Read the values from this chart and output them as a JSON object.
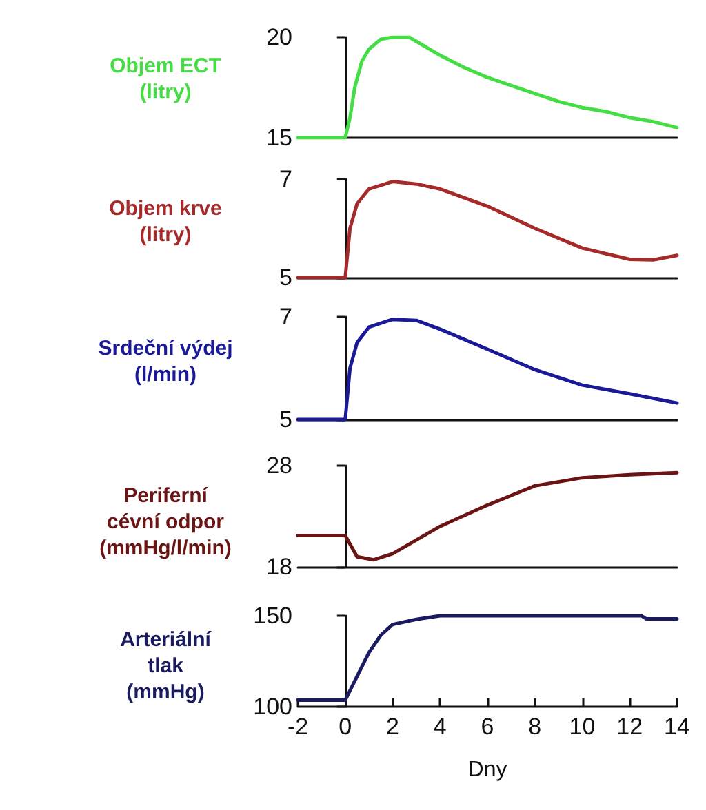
{
  "chart_data": [
    {
      "type": "line",
      "ylabel": "Objem ECT\n(litry)",
      "xlim": [
        -2,
        14
      ],
      "ylim": [
        15,
        20
      ],
      "yticks": [
        15,
        20
      ],
      "tick_labels": "y",
      "marker": "none",
      "series": [
        {
          "color": "#44dd44",
          "x": [
            -2,
            0,
            0.2,
            0.4,
            0.7,
            1,
            1.5,
            2,
            2.7,
            4,
            5,
            6,
            7,
            8,
            9,
            10,
            11,
            12,
            13,
            14
          ],
          "values": [
            15,
            15,
            16,
            17.5,
            18.8,
            19.4,
            19.9,
            20,
            20,
            19.1,
            18.5,
            18,
            17.6,
            17.2,
            16.8,
            16.5,
            16.3,
            16,
            15.8,
            15.5
          ]
        }
      ]
    },
    {
      "type": "line",
      "ylabel": "Objem krve\n(litry)",
      "xlim": [
        -2,
        14
      ],
      "ylim": [
        5,
        7
      ],
      "yticks": [
        5,
        7
      ],
      "tick_labels": "y",
      "marker": "none",
      "series": [
        {
          "color": "#a52a2a",
          "x": [
            -2,
            0,
            0.2,
            0.5,
            1,
            2,
            3,
            4,
            6,
            8,
            10,
            12,
            13,
            14
          ],
          "values": [
            5,
            5,
            6,
            6.5,
            6.8,
            6.95,
            6.9,
            6.8,
            6.45,
            6,
            5.6,
            5.37,
            5.36,
            5.45
          ]
        }
      ]
    },
    {
      "type": "line",
      "ylabel": "Srdeční výdej\n(l/min)",
      "xlim": [
        -2,
        14
      ],
      "ylim": [
        5,
        7
      ],
      "yticks": [
        5,
        7
      ],
      "tick_labels": "y",
      "marker": "none",
      "series": [
        {
          "color": "#1a1a99",
          "x": [
            -2,
            0,
            0.2,
            0.5,
            1,
            2,
            3,
            4,
            6,
            8,
            10,
            12,
            14
          ],
          "values": [
            5,
            5,
            6,
            6.5,
            6.8,
            6.95,
            6.93,
            6.76,
            6.37,
            5.97,
            5.67,
            5.5,
            5.32
          ]
        }
      ]
    },
    {
      "type": "line",
      "ylabel": "Periferní\ncévní odpor\n(mmHg/l/min)",
      "xlim": [
        -2,
        14
      ],
      "ylim": [
        18,
        28
      ],
      "yticks": [
        18,
        28
      ],
      "tick_labels": "y",
      "marker": "none",
      "series": [
        {
          "color": "#6b1414",
          "x": [
            -2,
            0,
            0.5,
            1.2,
            2,
            4,
            6,
            8,
            10,
            12,
            14
          ],
          "values": [
            21.1,
            21.1,
            19,
            18.7,
            19.3,
            22,
            24.1,
            26,
            26.8,
            27.1,
            27.3
          ]
        }
      ]
    },
    {
      "type": "line",
      "ylabel": "Arteriální\ntlak\n(mmHg)",
      "xlabel": "Dny",
      "xlim": [
        -2,
        14
      ],
      "xticks": [
        -2,
        0,
        2,
        4,
        6,
        8,
        10,
        12,
        14
      ],
      "ylim": [
        100,
        150
      ],
      "yticks": [
        100,
        150
      ],
      "marker": "none",
      "series": [
        {
          "color": "#1a1a5e",
          "x": [
            -2,
            0,
            0.5,
            1,
            1.5,
            2,
            3,
            4,
            12.5,
            12.7,
            14
          ],
          "values": [
            103.6,
            103.6,
            116.7,
            129.8,
            139.3,
            145.2,
            148,
            150,
            150,
            148.3,
            148.3
          ]
        }
      ]
    }
  ]
}
